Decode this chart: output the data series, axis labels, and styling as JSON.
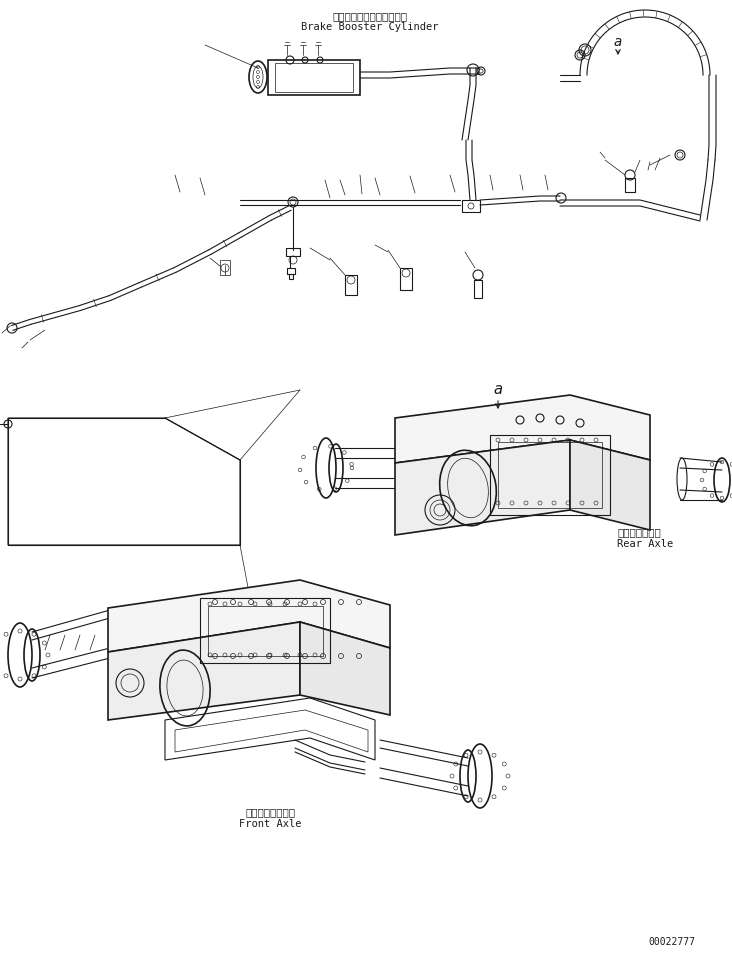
{
  "bg_color": "#ffffff",
  "fig_width": 7.32,
  "fig_height": 9.57,
  "dpi": 100,
  "title_jp": "ブレーキブースタシリンダ",
  "title_en": "Brake Booster Cylinder",
  "rear_axle_jp": "リヤーアクスル",
  "rear_axle_en": "Rear Axle",
  "front_axle_jp": "フロントアクスル",
  "front_axle_en": "Front Axle",
  "part_number": "00022777",
  "label_a": "a"
}
